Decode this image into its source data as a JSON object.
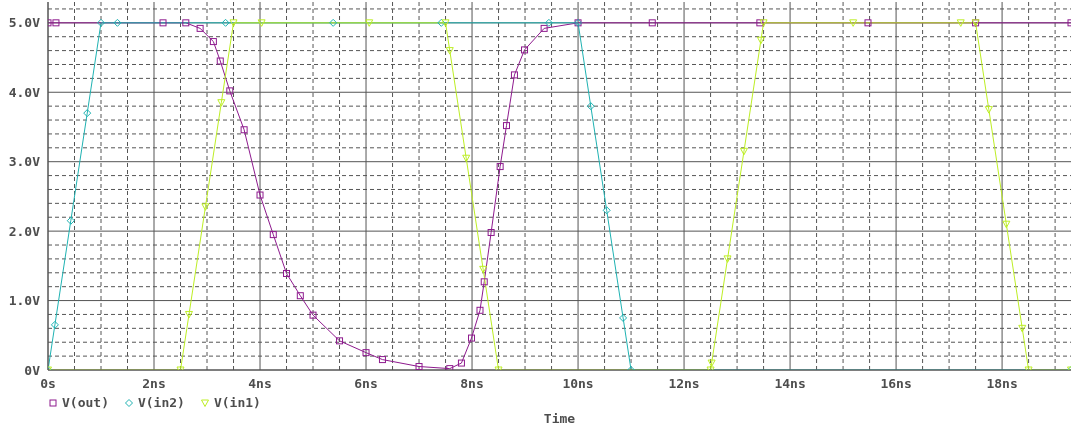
{
  "chart_data": {
    "type": "line",
    "xlabel": "Time",
    "xlim": [
      0,
      19.3
    ],
    "xticks": [
      {
        "value": 0,
        "label": "0s"
      },
      {
        "value": 0.5,
        "label": null
      },
      {
        "value": 1,
        "label": null
      },
      {
        "value": 1.5,
        "label": null
      },
      {
        "value": 2,
        "label": "2ns"
      },
      {
        "value": 2.5,
        "label": null
      },
      {
        "value": 3,
        "label": null
      },
      {
        "value": 3.5,
        "label": null
      },
      {
        "value": 4,
        "label": "4ns"
      },
      {
        "value": 4.5,
        "label": null
      },
      {
        "value": 5,
        "label": null
      },
      {
        "value": 5.5,
        "label": null
      },
      {
        "value": 6,
        "label": "6ns"
      },
      {
        "value": 6.5,
        "label": null
      },
      {
        "value": 7,
        "label": null
      },
      {
        "value": 7.5,
        "label": null
      },
      {
        "value": 8,
        "label": "8ns"
      },
      {
        "value": 8.5,
        "label": null
      },
      {
        "value": 9,
        "label": null
      },
      {
        "value": 9.5,
        "label": null
      },
      {
        "value": 10,
        "label": "10ns"
      },
      {
        "value": 10.5,
        "label": null
      },
      {
        "value": 11,
        "label": null
      },
      {
        "value": 11.5,
        "label": null
      },
      {
        "value": 12,
        "label": "12ns"
      },
      {
        "value": 12.5,
        "label": null
      },
      {
        "value": 13,
        "label": null
      },
      {
        "value": 13.5,
        "label": null
      },
      {
        "value": 14,
        "label": "14ns"
      },
      {
        "value": 14.5,
        "label": null
      },
      {
        "value": 15,
        "label": null
      },
      {
        "value": 15.5,
        "label": null
      },
      {
        "value": 16,
        "label": "16ns"
      },
      {
        "value": 16.5,
        "label": null
      },
      {
        "value": 17,
        "label": null
      },
      {
        "value": 17.5,
        "label": null
      },
      {
        "value": 18,
        "label": "18ns"
      },
      {
        "value": 18.5,
        "label": null
      },
      {
        "value": 19,
        "label": null
      }
    ],
    "ylim": [
      0,
      5.3
    ],
    "yticks": [
      {
        "value": 0,
        "label": "0V"
      },
      {
        "value": 0.2,
        "label": null
      },
      {
        "value": 0.4,
        "label": null
      },
      {
        "value": 0.6,
        "label": null
      },
      {
        "value": 0.8,
        "label": null
      },
      {
        "value": 1,
        "label": "1.0V"
      },
      {
        "value": 1.2,
        "label": null
      },
      {
        "value": 1.4,
        "label": null
      },
      {
        "value": 1.6,
        "label": null
      },
      {
        "value": 1.8,
        "label": null
      },
      {
        "value": 2,
        "label": "2.0V"
      },
      {
        "value": 2.2,
        "label": null
      },
      {
        "value": 2.4,
        "label": null
      },
      {
        "value": 2.6,
        "label": null
      },
      {
        "value": 2.8,
        "label": null
      },
      {
        "value": 3,
        "label": "3.0V"
      },
      {
        "value": 3.2,
        "label": null
      },
      {
        "value": 3.4,
        "label": null
      },
      {
        "value": 3.6,
        "label": null
      },
      {
        "value": 3.8,
        "label": null
      },
      {
        "value": 4,
        "label": "4.0V"
      },
      {
        "value": 4.2,
        "label": null
      },
      {
        "value": 4.4,
        "label": null
      },
      {
        "value": 4.6,
        "label": null
      },
      {
        "value": 4.8,
        "label": null
      },
      {
        "value": 5,
        "label": "5.0V"
      },
      {
        "value": 5.2,
        "label": null
      }
    ],
    "grid": true,
    "legend": "bottom left",
    "series": [
      {
        "name": "V(out)",
        "color": "#8e1a8e",
        "marker": "square",
        "x": [
          0,
          0.15,
          2.17,
          2.6,
          2.87,
          3.12,
          3.25,
          3.43,
          3.7,
          4.0,
          4.25,
          4.5,
          4.76,
          5.0,
          5.5,
          6.0,
          6.31,
          7.0,
          7.58,
          7.8,
          7.99,
          8.15,
          8.23,
          8.36,
          8.53,
          8.65,
          8.8,
          8.99,
          9.36,
          10,
          11.4,
          13.43,
          15.47,
          17.5,
          19.3
        ],
        "values": [
          5,
          5,
          5,
          5,
          4.92,
          4.73,
          4.45,
          4.02,
          3.46,
          2.52,
          1.95,
          1.39,
          1.07,
          0.79,
          0.42,
          0.25,
          0.15,
          0.05,
          0.02,
          0.1,
          0.46,
          0.86,
          1.27,
          1.98,
          2.93,
          3.52,
          4.25,
          4.61,
          4.92,
          5,
          5,
          5,
          5,
          5,
          5
        ]
      },
      {
        "name": "V(in2)",
        "color": "#1fb2b2",
        "marker": "diamond",
        "x": [
          0,
          0.13,
          0.43,
          0.74,
          1,
          1.31,
          3.35,
          5.38,
          7.42,
          9.45,
          10,
          10.24,
          10.54,
          10.85,
          11,
          19.3
        ],
        "values": [
          0,
          0.65,
          2.15,
          3.7,
          5,
          5,
          5,
          5,
          5,
          5,
          5,
          3.8,
          2.3,
          0.75,
          0,
          0
        ]
      },
      {
        "name": "V(in1)",
        "color": "#bdee24",
        "marker": "triangle",
        "x": [
          0,
          2.5,
          2.66,
          2.97,
          3.27,
          3.5,
          4.03,
          6.06,
          7.5,
          7.58,
          7.89,
          8.21,
          8.5,
          12.5,
          12.52,
          12.82,
          13.13,
          13.45,
          13.5,
          15.19,
          17.22,
          17.5,
          17.75,
          18.08,
          18.38,
          18.5,
          19.3
        ],
        "values": [
          0,
          0,
          0.8,
          2.35,
          3.85,
          5,
          5,
          5,
          5,
          4.6,
          3.05,
          1.45,
          0,
          0,
          0.1,
          1.6,
          3.15,
          4.75,
          5,
          5,
          5,
          5,
          3.75,
          2.1,
          0.6,
          0,
          0
        ]
      }
    ]
  }
}
